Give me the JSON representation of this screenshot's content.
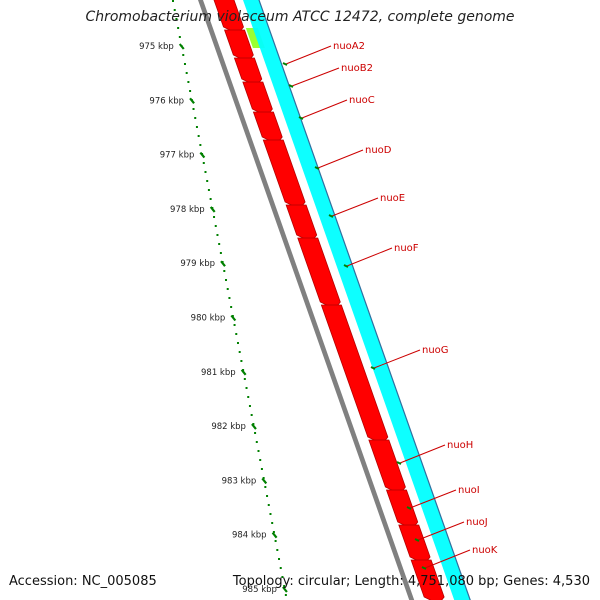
{
  "title": "Chromobacterium violaceum ATCC 12472, complete genome",
  "accession": "Accession: NC_005085",
  "topology_info": "Topology: circular; Length: 4,751,080 bp; Genes: 4,530",
  "scale_labels": [
    "975 kbp",
    "976 kbp",
    "977 kbp",
    "978 kbp",
    "979 kbp",
    "980 kbp",
    "981 kbp",
    "982 kbp",
    "983 kbp",
    "984 kbp",
    "985 kbp"
  ],
  "genes": [
    {
      "name": "nuoA2"
    },
    {
      "name": "nuoB2"
    },
    {
      "name": "nuoC"
    },
    {
      "name": "nuoD"
    },
    {
      "name": "nuoE"
    },
    {
      "name": "nuoF"
    },
    {
      "name": "nuoG"
    },
    {
      "name": "nuoH"
    },
    {
      "name": "nuoI"
    },
    {
      "name": "nuoJ"
    },
    {
      "name": "nuoK"
    }
  ],
  "colors": {
    "cds": "#ff0000",
    "cds_border": "#b40000",
    "gc_track": "#00ffff",
    "backbone": "#808080",
    "scale_ticks": "#008000",
    "gene_labels": "#cc0000",
    "lime_feature": "#99ff33"
  }
}
